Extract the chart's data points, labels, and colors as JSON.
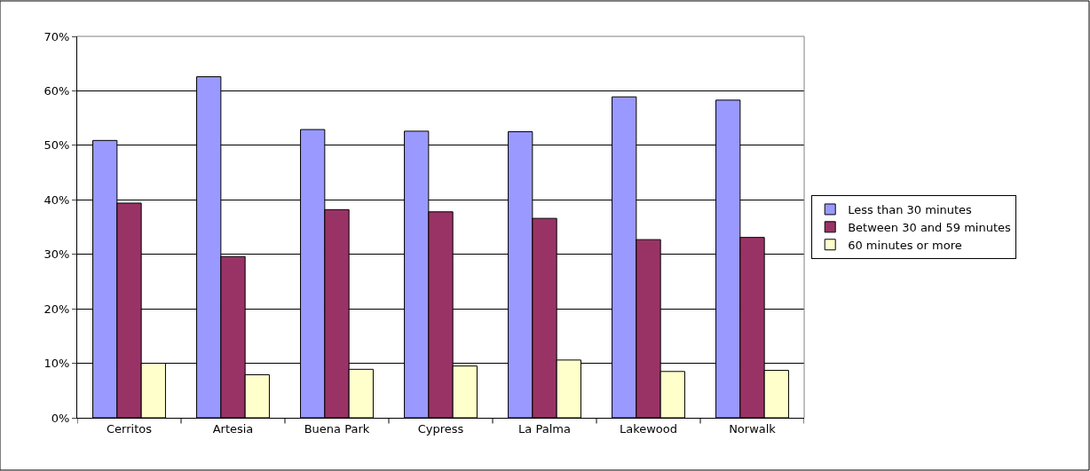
{
  "chart_data": {
    "type": "bar",
    "categories": [
      "Cerritos",
      "Artesia",
      "Buena Park",
      "Cypress",
      "La Palma",
      "Lakewood",
      "Norwalk"
    ],
    "series": [
      {
        "name": "Less than 30 minutes",
        "color": "#9999ff",
        "values": [
          50.9,
          62.6,
          52.9,
          52.6,
          52.5,
          58.9,
          58.3
        ]
      },
      {
        "name": "Between 30 and 59 minutes",
        "color": "#993366",
        "values": [
          39.4,
          29.6,
          38.2,
          37.8,
          36.6,
          32.7,
          33.1
        ]
      },
      {
        "name": "60 minutes or more",
        "color": "#ffffcc",
        "values": [
          10.0,
          7.9,
          8.9,
          9.5,
          10.6,
          8.5,
          8.7
        ]
      }
    ],
    "ylim": [
      0,
      70
    ],
    "yticks": [
      {
        "value": 0,
        "label": "0%"
      },
      {
        "value": 10,
        "label": "10%"
      },
      {
        "value": 20,
        "label": "20%"
      },
      {
        "value": 30,
        "label": "30%"
      },
      {
        "value": 40,
        "label": "40%"
      },
      {
        "value": 50,
        "label": "50%"
      },
      {
        "value": 60,
        "label": "60%"
      },
      {
        "value": 70,
        "label": "70%"
      }
    ],
    "grid": "y",
    "legend": "right"
  }
}
